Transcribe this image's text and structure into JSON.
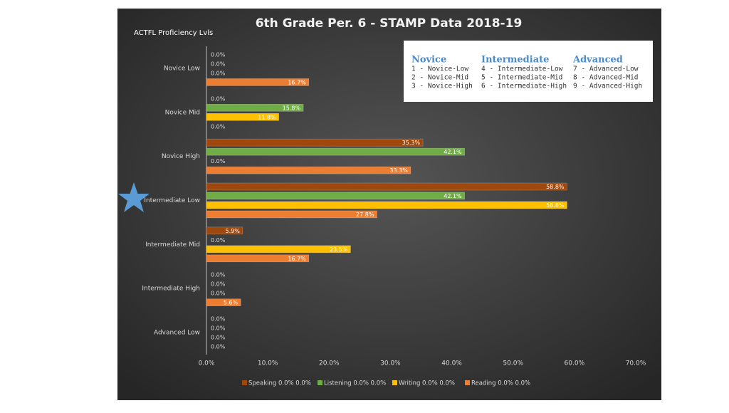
{
  "chart_data": {
    "type": "bar",
    "orientation": "horizontal",
    "title": "6th Grade Per. 6 - STAMP Data 2018-19",
    "y_label": "ACTFL Proficiency Lvls",
    "categories": [
      "Novice Low",
      "Novice Mid",
      "Novice High",
      "Intermediate Low",
      "Intermediate Mid",
      "Intermediate High",
      "Advanced Low"
    ],
    "series": [
      {
        "name": "Speaking 0.0% 0.0%",
        "color": "#9e480e",
        "values": [
          0,
          0,
          35.3,
          58.8,
          5.9,
          0,
          0
        ],
        "value_labels": [
          "0.0%",
          "0.0%",
          "35.3%",
          "58.8%",
          "5.9%",
          "0.0%",
          "0.0%"
        ]
      },
      {
        "name": "Listening 0.0% 0.0%",
        "color": "#70ad47",
        "values": [
          0,
          15.8,
          42.1,
          42.1,
          0,
          0,
          0
        ],
        "value_labels": [
          "0.0%",
          "15.8%",
          "42.1%",
          "42.1%",
          "0.0%",
          "0.0%",
          "0.0%"
        ]
      },
      {
        "name": "Writing 0.0% 0.0%",
        "color": "#ffc000",
        "values": [
          0,
          11.8,
          0,
          58.8,
          23.5,
          0,
          0
        ],
        "value_labels": [
          "0.0%",
          "11.8%",
          "0.0%",
          "58.8%",
          "23.5%",
          "0.0%",
          "0.0%"
        ]
      },
      {
        "name": "Reading 0.0% 0.0%",
        "color": "#ed7d31",
        "values": [
          16.7,
          0,
          33.3,
          27.8,
          16.7,
          5.6,
          0
        ],
        "value_labels": [
          "16.7%",
          "0.0%",
          "33.3%",
          "27.8%",
          "16.7%",
          "5.6%",
          "0.0%"
        ]
      }
    ],
    "xlim": [
      0,
      70
    ],
    "xticks": [
      {
        "value": 0,
        "label": "0.0%"
      },
      {
        "value": 10,
        "label": "10.0%"
      },
      {
        "value": 20,
        "label": "20.0%"
      },
      {
        "value": 30,
        "label": "30.0%"
      },
      {
        "value": 40,
        "label": "40.0%"
      },
      {
        "value": 50,
        "label": "50.0%"
      },
      {
        "value": 60,
        "label": "60.0%"
      },
      {
        "value": 70,
        "label": "70.0%"
      }
    ],
    "grid": false,
    "legend": "bottom"
  },
  "proficiency_key": [
    {
      "heading": "Novice",
      "items": [
        "1 - Novice-Low",
        "2 - Novice-Mid",
        "3 - Novice-High"
      ]
    },
    {
      "heading": "Intermediate",
      "items": [
        "4 - Intermediate-Low",
        "5 - Intermediate-Mid",
        "6 - Intermediate-High"
      ]
    },
    {
      "heading": "Advanced",
      "items": [
        "7 - Advanced-Low",
        "8 - Advanced-Mid",
        "9 - Advanced-High"
      ]
    }
  ]
}
